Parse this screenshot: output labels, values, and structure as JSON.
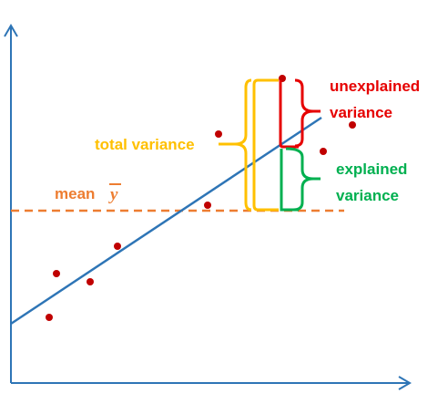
{
  "diagram": {
    "colors": {
      "axes": "#2e75b6",
      "regression_line": "#2e75b6",
      "points": "#c00000",
      "mean_line": "#ed7d31",
      "total": "#ffc000",
      "unexplained": "#e60000",
      "explained": "#00b050"
    },
    "labels": {
      "total_variance": "total variance",
      "unexplained_line1": "unexplained",
      "unexplained_line2": "variance",
      "explained_line1": "explained",
      "explained_line2": "variance",
      "mean_word": "mean ",
      "mean_symbol": "y"
    },
    "icons": {
      "x_axis_arrow": "arrow-right-icon",
      "y_axis_arrow": "arrow-up-icon"
    }
  }
}
